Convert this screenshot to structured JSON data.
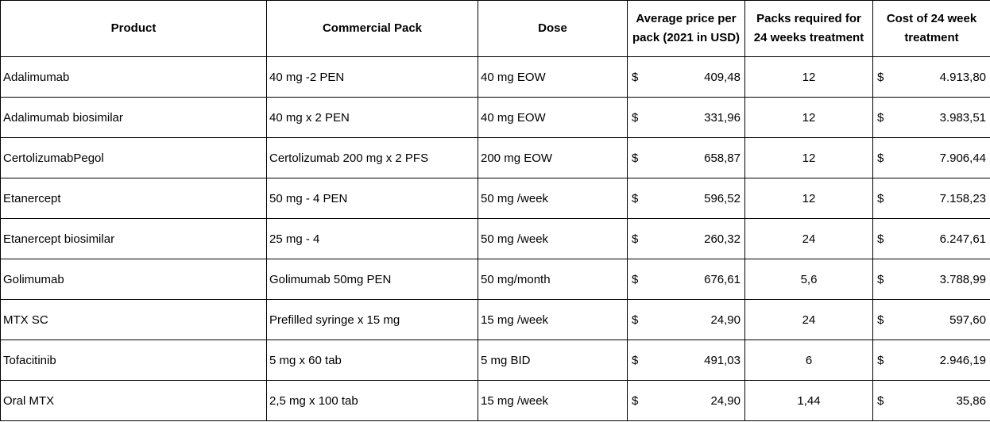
{
  "table": {
    "headers": {
      "product": "Product",
      "pack": "Commercial Pack",
      "dose": "Dose",
      "price_line1": "Average price per",
      "price_line2": "pack (2021 in USD)",
      "packs_line1": "Packs required for",
      "packs_line2": "24 weeks treatment",
      "cost_line1": "Cost of 24 week",
      "cost_line2": "treatment"
    },
    "currency_symbol": "$",
    "rows": [
      {
        "product": "Adalimumab",
        "pack": "40 mg -2 PEN",
        "dose": "40 mg EOW",
        "price": "409,48",
        "packs": "12",
        "cost": "4.913,80"
      },
      {
        "product": "Adalimumab biosimilar",
        "pack": "40 mg x 2 PEN",
        "dose": "40 mg EOW",
        "price": "331,96",
        "packs": "12",
        "cost": "3.983,51"
      },
      {
        "product": "CertolizumabPegol",
        "pack": "Certolizumab 200 mg x 2 PFS",
        "dose": "200 mg EOW",
        "price": "658,87",
        "packs": "12",
        "cost": "7.906,44"
      },
      {
        "product": "Etanercept",
        "pack": "50 mg - 4 PEN",
        "dose": "50 mg /week",
        "price": "596,52",
        "packs": "12",
        "cost": "7.158,23"
      },
      {
        "product": "Etanercept biosimilar",
        "pack": "25 mg - 4",
        "dose": "50 mg /week",
        "price": "260,32",
        "packs": "24",
        "cost": "6.247,61"
      },
      {
        "product": "Golimumab",
        "pack": "Golimumab 50mg PEN",
        "dose": "50 mg/month",
        "price": "676,61",
        "packs": "5,6",
        "cost": "3.788,99"
      },
      {
        "product": "MTX SC",
        "pack": "Prefilled syringe x 15 mg",
        "dose": "15 mg /week",
        "price": "24,90",
        "packs": "24",
        "cost": "597,60"
      },
      {
        "product": "Tofacitinib",
        "pack": "5 mg x 60 tab",
        "dose": "5 mg BID",
        "price": "491,03",
        "packs": "6",
        "cost": "2.946,19"
      },
      {
        "product": "Oral MTX",
        "pack": "2,5 mg x 100 tab",
        "dose": "15 mg /week",
        "price": "24,90",
        "packs": "1,44",
        "cost": "35,86"
      }
    ]
  }
}
